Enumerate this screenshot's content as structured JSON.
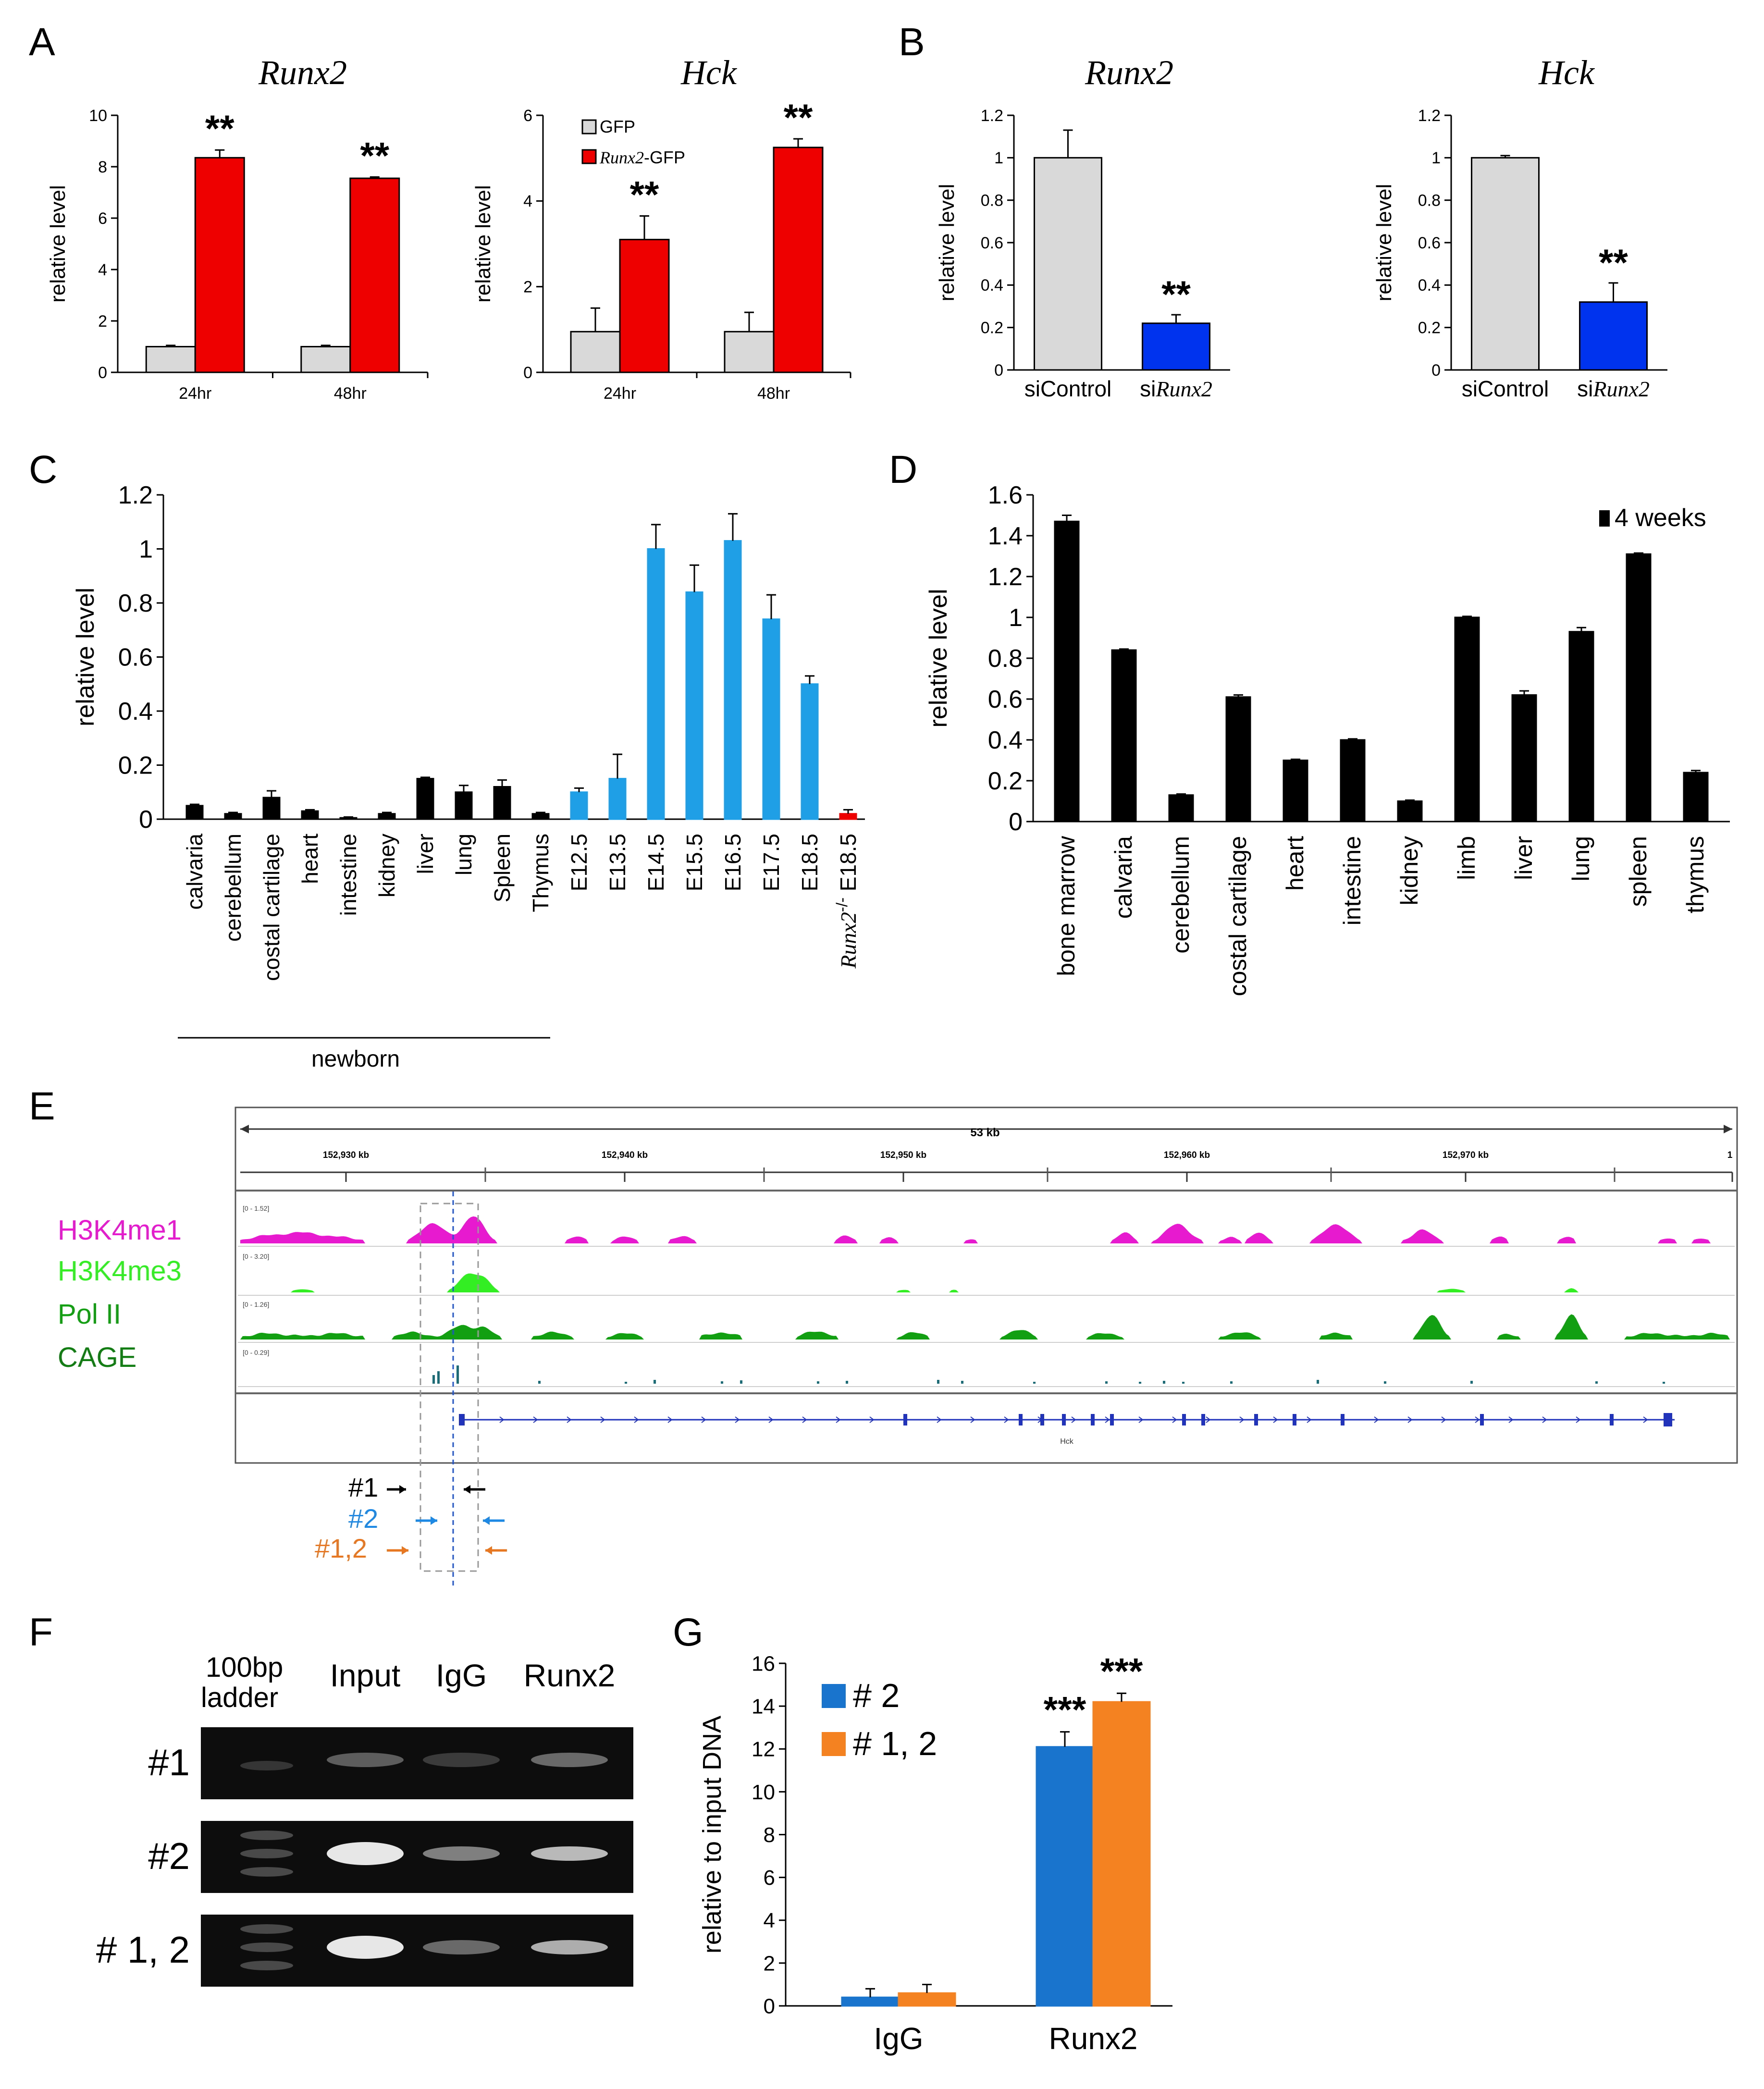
{
  "chart_data": [
    {
      "panel": "A",
      "type": "bar",
      "title": "Runx2",
      "categories": [
        "24hr",
        "48hr"
      ],
      "ylabel": "relative level",
      "ylim": [
        0,
        10
      ],
      "yticks": [
        0,
        2,
        4,
        6,
        8,
        10
      ],
      "series": [
        {
          "name": "GFP",
          "color": "#d9d9d9",
          "values": [
            1.0,
            1.0
          ],
          "errors": [
            0.05,
            0.05
          ]
        },
        {
          "name": "Runx2-GFP",
          "color": "#ee0000",
          "values": [
            8.35,
            7.55
          ],
          "errors": [
            0.3,
            0.05
          ]
        }
      ],
      "annotations": [
        "**",
        "**"
      ]
    },
    {
      "panel": "A",
      "type": "bar",
      "title": "Hck",
      "categories": [
        "24hr",
        "48hr"
      ],
      "ylabel": "relative level",
      "ylim": [
        0,
        6
      ],
      "yticks": [
        0,
        2,
        4,
        6
      ],
      "series": [
        {
          "name": "GFP",
          "color": "#d9d9d9",
          "values": [
            0.95,
            0.95
          ],
          "errors": [
            0.55,
            0.45
          ]
        },
        {
          "name": "Runx2-GFP",
          "color": "#ee0000",
          "values": [
            3.1,
            5.25
          ],
          "errors": [
            0.55,
            0.2
          ]
        }
      ],
      "legend": [
        "GFP",
        "Runx2-GFP"
      ],
      "annotations": [
        "**",
        "**"
      ]
    },
    {
      "panel": "B",
      "type": "bar",
      "title": "Runx2",
      "categories": [
        "siControl",
        "siRunx2"
      ],
      "ylabel": "relative level",
      "ylim": [
        0,
        1.2
      ],
      "yticks": [
        "0",
        "0.2",
        "0.4",
        "0.6",
        "0.8",
        "1",
        "1.2"
      ],
      "values": [
        1.0,
        0.22
      ],
      "errors": [
        0.13,
        0.04
      ],
      "colors": [
        "#d9d9d9",
        "#0033ee"
      ],
      "annotations": [
        "",
        "**"
      ]
    },
    {
      "panel": "B",
      "type": "bar",
      "title": "Hck",
      "categories": [
        "siControl",
        "siRunx2"
      ],
      "ylabel": "relative level",
      "ylim": [
        0,
        1.2
      ],
      "yticks": [
        "0",
        "0.2",
        "0.4",
        "0.6",
        "0.8",
        "1",
        "1.2"
      ],
      "values": [
        1.0,
        0.32
      ],
      "errors": [
        0.01,
        0.09
      ],
      "colors": [
        "#d9d9d9",
        "#0033ee"
      ],
      "annotations": [
        "",
        "**"
      ]
    },
    {
      "panel": "C",
      "type": "bar",
      "ylabel": "relative level",
      "ylim": [
        0,
        1.2
      ],
      "yticks": [
        "0",
        "0.2",
        "0.4",
        "0.6",
        "0.8",
        "1",
        "1.2"
      ],
      "categories": [
        "calvaria",
        "cerebellum",
        "costal cartilage",
        "heart",
        "intestine",
        "kidney",
        "liver",
        "lung",
        "Spleen",
        "Thymus",
        "E12.5",
        "E13.5",
        "E14.5",
        "E15.5",
        "E16.5",
        "E17.5",
        "E18.5",
        "Runx2-/- E18.5"
      ],
      "values": [
        0.05,
        0.02,
        0.08,
        0.03,
        0.005,
        0.02,
        0.15,
        0.1,
        0.12,
        0.02,
        0.1,
        0.15,
        1.0,
        0.84,
        1.03,
        0.74,
        0.5,
        0.02
      ],
      "errors": [
        0.005,
        0.005,
        0.025,
        0.005,
        0.003,
        0.005,
        0.005,
        0.025,
        0.025,
        0.005,
        0.015,
        0.09,
        0.09,
        0.1,
        0.1,
        0.09,
        0.03,
        0.015
      ],
      "colors": [
        "#000000",
        "#000000",
        "#000000",
        "#000000",
        "#000000",
        "#000000",
        "#000000",
        "#000000",
        "#000000",
        "#000000",
        "#1e9fe6",
        "#1e9fe6",
        "#1e9fe6",
        "#1e9fe6",
        "#1e9fe6",
        "#1e9fe6",
        "#1e9fe6",
        "#ee0000"
      ],
      "group_label": "newborn"
    },
    {
      "panel": "D",
      "type": "bar",
      "ylabel": "relative level",
      "ylim": [
        0,
        1.6
      ],
      "yticks": [
        "0",
        "0.2",
        "0.4",
        "0.6",
        "0.8",
        "1",
        "1.2",
        "1.4",
        "1.6"
      ],
      "categories": [
        "bone marrow",
        "calvaria",
        "cerebellum",
        "costal cartilage",
        "heart",
        "intestine",
        "kidney",
        "limb",
        "liver",
        "lung",
        "spleen",
        "thymus"
      ],
      "values": [
        1.47,
        0.84,
        0.13,
        0.61,
        0.3,
        0.4,
        0.1,
        1.0,
        0.62,
        0.93,
        1.31,
        0.24
      ],
      "errors": [
        0.03,
        0.005,
        0.005,
        0.01,
        0.005,
        0.005,
        0.005,
        0.005,
        0.02,
        0.02,
        0.005,
        0.01
      ],
      "legend": [
        "4 weeks"
      ]
    },
    {
      "panel": "G",
      "type": "bar",
      "ylabel": "relative to input DNA",
      "ylim": [
        0,
        16
      ],
      "yticks": [
        0,
        2,
        4,
        6,
        8,
        10,
        12,
        14,
        16
      ],
      "categories": [
        "IgG",
        "Runx2"
      ],
      "series": [
        {
          "name": "# 2",
          "color": "#1874cd",
          "values": [
            0.4,
            12.1
          ],
          "errors": [
            0.4,
            0.7
          ]
        },
        {
          "name": "# 1, 2",
          "color": "#f58220",
          "values": [
            0.6,
            14.2
          ],
          "errors": [
            0.4,
            0.4
          ]
        }
      ],
      "annotations": [
        "***",
        "***"
      ]
    }
  ],
  "panel_labels": [
    "A",
    "B",
    "C",
    "D",
    "E",
    "F",
    "G"
  ],
  "browser": {
    "span": "53 kb",
    "ticks": [
      "152,930 kb",
      "152,940 kb",
      "152,950 kb",
      "152,960 kb",
      "152,970 kb",
      "1"
    ],
    "tracks": [
      {
        "name": "H3K4me1",
        "color": "#e81ad0",
        "range": "[0 - 1.52]"
      },
      {
        "name": "H3K4me3",
        "color": "#33ee22",
        "range": "[0 - 3.20]"
      },
      {
        "name": "Pol II",
        "color": "#12a012",
        "range": "[0 - 1.26]"
      },
      {
        "name": "CAGE",
        "color": "#127d12",
        "range": "[0 - 0.29]"
      }
    ],
    "gene": "Hck",
    "primers": [
      {
        "label": "#1",
        "color": "#000000"
      },
      {
        "label": "#2",
        "color": "#1e88e5"
      },
      {
        "label": "#1,2",
        "color": "#e87722"
      }
    ]
  },
  "gel": {
    "lanes": [
      "100bp ladder",
      "Input",
      "IgG",
      "Runx2"
    ],
    "rows": [
      "#1",
      "#2",
      "# 1, 2"
    ]
  },
  "runx2_italic": "Runx2",
  "hck_italic": "Hck",
  "si_prefix": "si",
  "gfp_suffix": "-GFP",
  "ko_superscript": "-/-"
}
